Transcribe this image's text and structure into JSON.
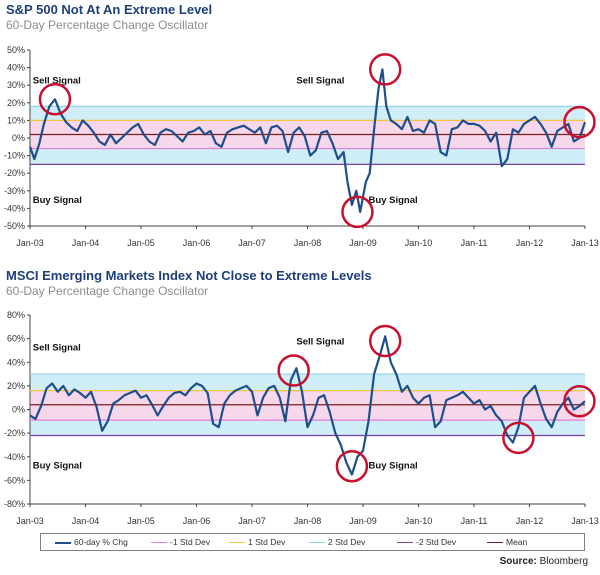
{
  "colors": {
    "series": "#1f4e8c",
    "plus2": "#8fd3e8",
    "plus1": "#f5c542",
    "minus1": "#e57fd8",
    "minus2": "#7b3f9e",
    "mean": "#7a1f1f",
    "band_outer": "#cfeef7",
    "band_pink": "#f7d7ea",
    "circle": "#c8102e",
    "title": "#1f3f7a"
  },
  "legend": [
    {
      "label": "60-day % Chg",
      "color_key": "series"
    },
    {
      "label": "-1 Std Dev",
      "color_key": "minus1"
    },
    {
      "label": "1 Std Dev",
      "color_key": "plus1"
    },
    {
      "label": "2 Std Dev",
      "color_key": "plus2"
    },
    {
      "label": "-2 Std Dev",
      "color_key": "minus2"
    },
    {
      "label": "Mean",
      "color_key": "mean"
    }
  ],
  "source": {
    "label": "Source:",
    "value": "Bloomberg"
  },
  "chart_data": [
    {
      "type": "line",
      "title": "S&P 500 Not At An Extreme Level",
      "subtitle": "60-Day Percentage Change Oscillator",
      "ylim": [
        -50,
        50
      ],
      "yticks": [
        -50,
        -40,
        -30,
        -20,
        -10,
        0,
        10,
        20,
        30,
        40,
        50
      ],
      "x_tick_labels": [
        "Jan-03",
        "Jan-04",
        "Jan-05",
        "Jan-06",
        "Jan-07",
        "Jan-08",
        "Jan-09",
        "Jan-10",
        "Jan-11",
        "Jan-12",
        "Jan-13"
      ],
      "xlim": [
        2003.0,
        2013.0
      ],
      "reference_lines": {
        "mean": 2,
        "plus1": 10,
        "minus1": -6,
        "plus2": 18,
        "minus2": -15
      },
      "annotations": [
        {
          "text": "Sell Signal",
          "x": 2003.05,
          "y": 31
        },
        {
          "text": "Sell Signal",
          "x": 2007.8,
          "y": 31
        },
        {
          "text": "Buy Signal",
          "x": 2003.05,
          "y": -37
        },
        {
          "text": "Buy Signal",
          "x": 2009.1,
          "y": -37
        }
      ],
      "circles": [
        {
          "x": 2003.45,
          "y": 22
        },
        {
          "x": 2008.9,
          "y": -42
        },
        {
          "x": 2009.4,
          "y": 39
        },
        {
          "x": 2012.9,
          "y": 9
        }
      ],
      "series": [
        {
          "name": "60-day % Chg",
          "x": [
            2003.0,
            2003.08,
            2003.17,
            2003.25,
            2003.35,
            2003.45,
            2003.55,
            2003.65,
            2003.75,
            2003.85,
            2003.95,
            2004.05,
            2004.15,
            2004.25,
            2004.35,
            2004.45,
            2004.55,
            2004.65,
            2004.75,
            2004.85,
            2004.95,
            2005.05,
            2005.15,
            2005.25,
            2005.35,
            2005.45,
            2005.55,
            2005.65,
            2005.75,
            2005.85,
            2005.95,
            2006.05,
            2006.15,
            2006.25,
            2006.35,
            2006.45,
            2006.55,
            2006.65,
            2006.75,
            2006.85,
            2006.95,
            2007.05,
            2007.15,
            2007.25,
            2007.35,
            2007.45,
            2007.55,
            2007.65,
            2007.75,
            2007.85,
            2007.95,
            2008.05,
            2008.15,
            2008.25,
            2008.35,
            2008.45,
            2008.55,
            2008.65,
            2008.72,
            2008.8,
            2008.88,
            2008.95,
            2009.05,
            2009.12,
            2009.2,
            2009.28,
            2009.35,
            2009.42,
            2009.5,
            2009.6,
            2009.7,
            2009.8,
            2009.9,
            2010.0,
            2010.1,
            2010.2,
            2010.3,
            2010.4,
            2010.5,
            2010.6,
            2010.7,
            2010.8,
            2010.9,
            2011.0,
            2011.1,
            2011.2,
            2011.3,
            2011.4,
            2011.5,
            2011.6,
            2011.7,
            2011.8,
            2011.9,
            2012.0,
            2012.1,
            2012.2,
            2012.3,
            2012.4,
            2012.5,
            2012.6,
            2012.7,
            2012.8,
            2012.9,
            2013.0
          ],
          "values": [
            -5,
            -12,
            -3,
            8,
            18,
            22,
            14,
            9,
            6,
            4,
            10,
            7,
            3,
            -2,
            -4,
            2,
            -3,
            0,
            3,
            6,
            8,
            2,
            -2,
            -4,
            3,
            5,
            4,
            1,
            -2,
            3,
            4,
            6,
            2,
            4,
            -3,
            -5,
            3,
            5,
            6,
            7,
            5,
            3,
            6,
            -3,
            6,
            7,
            4,
            -8,
            3,
            6,
            1,
            -10,
            -7,
            3,
            4,
            -3,
            -12,
            -8,
            -25,
            -38,
            -30,
            -42,
            -25,
            -20,
            5,
            28,
            39,
            18,
            10,
            8,
            5,
            12,
            4,
            5,
            3,
            10,
            8,
            -8,
            -10,
            5,
            6,
            10,
            8,
            8,
            7,
            4,
            -2,
            3,
            -16,
            -12,
            5,
            3,
            8,
            10,
            12,
            8,
            3,
            -5,
            4,
            6,
            8,
            -2,
            0,
            9
          ]
        }
      ]
    },
    {
      "type": "line",
      "title": "MSCI Emerging Markets Index Not Close to Extreme Levels",
      "subtitle": "60-Day Percentage Change Oscillator",
      "ylim": [
        -80,
        80
      ],
      "yticks": [
        -80,
        -60,
        -40,
        -20,
        0,
        20,
        40,
        60,
        80
      ],
      "x_tick_labels": [
        "Jan-03",
        "Jan-04",
        "Jan-05",
        "Jan-06",
        "Jan-07",
        "Jan-08",
        "Jan-09",
        "Jan-10",
        "Jan-11",
        "Jan-12",
        "Jan-13"
      ],
      "xlim": [
        2003.0,
        2013.0
      ],
      "reference_lines": {
        "mean": 4,
        "plus1": 16,
        "minus1": -9,
        "plus2": 30,
        "minus2": -22
      },
      "annotations": [
        {
          "text": "Sell Signal",
          "x": 2003.05,
          "y": 50
        },
        {
          "text": "Sell Signal",
          "x": 2007.8,
          "y": 55
        },
        {
          "text": "Buy Signal",
          "x": 2003.05,
          "y": -50
        },
        {
          "text": "Buy Signal",
          "x": 2009.1,
          "y": -50
        }
      ],
      "circles": [
        {
          "x": 2007.75,
          "y": 33
        },
        {
          "x": 2008.8,
          "y": -48
        },
        {
          "x": 2009.4,
          "y": 58
        },
        {
          "x": 2011.8,
          "y": -24
        },
        {
          "x": 2012.9,
          "y": 7
        }
      ],
      "series": [
        {
          "name": "60-day % Chg",
          "x": [
            2003.0,
            2003.1,
            2003.2,
            2003.3,
            2003.4,
            2003.5,
            2003.6,
            2003.7,
            2003.8,
            2003.9,
            2004.0,
            2004.1,
            2004.2,
            2004.3,
            2004.4,
            2004.5,
            2004.6,
            2004.7,
            2004.8,
            2004.9,
            2005.0,
            2005.1,
            2005.2,
            2005.3,
            2005.4,
            2005.5,
            2005.6,
            2005.7,
            2005.8,
            2005.9,
            2006.0,
            2006.1,
            2006.2,
            2006.3,
            2006.4,
            2006.5,
            2006.6,
            2006.7,
            2006.8,
            2006.9,
            2007.0,
            2007.1,
            2007.2,
            2007.3,
            2007.4,
            2007.5,
            2007.6,
            2007.7,
            2007.8,
            2007.9,
            2008.0,
            2008.1,
            2008.2,
            2008.3,
            2008.4,
            2008.5,
            2008.6,
            2008.7,
            2008.8,
            2008.9,
            2009.0,
            2009.1,
            2009.2,
            2009.3,
            2009.4,
            2009.5,
            2009.6,
            2009.7,
            2009.8,
            2009.9,
            2010.0,
            2010.1,
            2010.2,
            2010.3,
            2010.4,
            2010.5,
            2010.6,
            2010.7,
            2010.8,
            2010.9,
            2011.0,
            2011.1,
            2011.2,
            2011.3,
            2011.4,
            2011.5,
            2011.6,
            2011.7,
            2011.8,
            2011.9,
            2012.0,
            2012.1,
            2012.2,
            2012.3,
            2012.4,
            2012.5,
            2012.6,
            2012.7,
            2012.8,
            2012.9,
            2013.0
          ],
          "values": [
            -5,
            -8,
            3,
            18,
            22,
            15,
            20,
            12,
            17,
            14,
            10,
            15,
            2,
            -18,
            -10,
            5,
            8,
            12,
            14,
            16,
            10,
            12,
            4,
            -5,
            3,
            10,
            14,
            15,
            12,
            18,
            22,
            20,
            14,
            -12,
            -15,
            5,
            12,
            16,
            18,
            20,
            15,
            -5,
            10,
            18,
            20,
            10,
            -10,
            25,
            35,
            15,
            -15,
            -5,
            10,
            12,
            -2,
            -20,
            -30,
            -45,
            -55,
            -40,
            -35,
            -10,
            30,
            45,
            62,
            40,
            30,
            15,
            20,
            10,
            5,
            10,
            12,
            -15,
            -10,
            8,
            10,
            12,
            15,
            10,
            5,
            8,
            0,
            3,
            -5,
            -10,
            -22,
            -28,
            -15,
            10,
            15,
            20,
            5,
            -8,
            -15,
            -2,
            5,
            10,
            0,
            3,
            7
          ]
        }
      ]
    }
  ]
}
